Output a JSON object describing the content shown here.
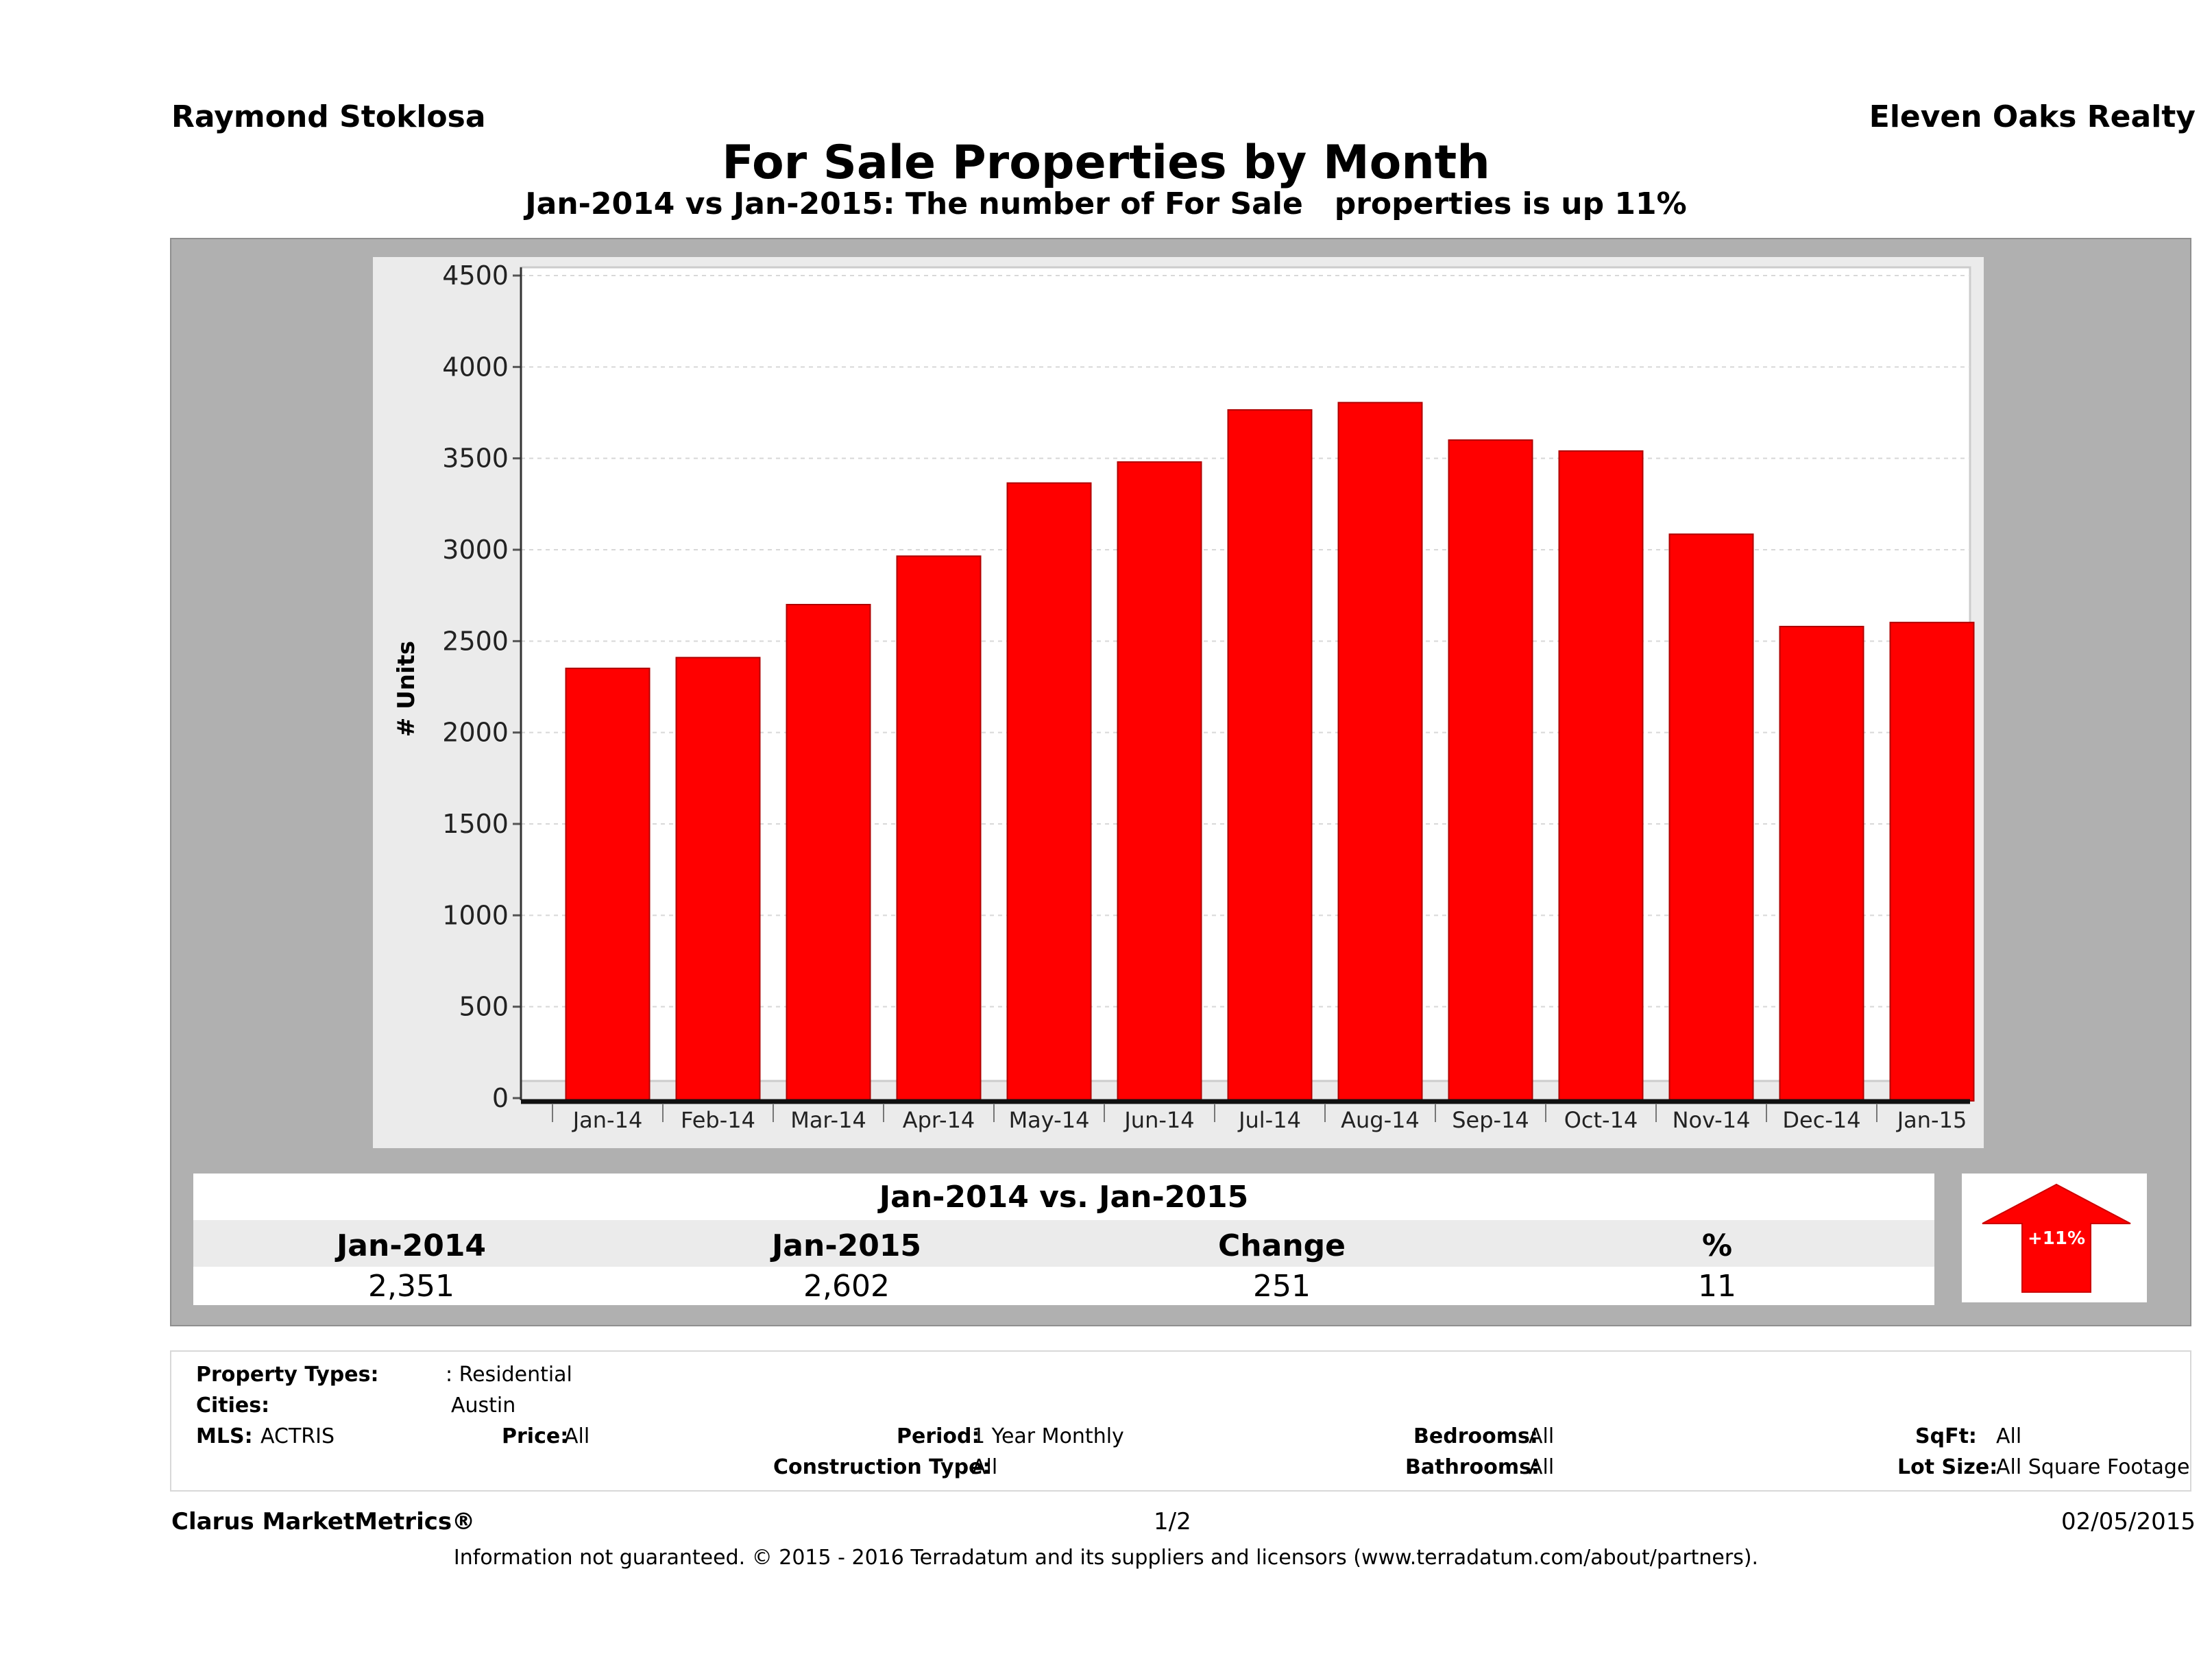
{
  "header": {
    "agent": "Raymond Stoklosa",
    "company": "Eleven Oaks Realty",
    "title": "For Sale Properties by Month",
    "subtitle": "Jan-2014 vs Jan-2015: The number of For Sale   properties is up 11%"
  },
  "chart_data": {
    "type": "bar",
    "categories": [
      "Jan-14",
      "Feb-14",
      "Mar-14",
      "Apr-14",
      "May-14",
      "Jun-14",
      "Jul-14",
      "Aug-14",
      "Sep-14",
      "Oct-14",
      "Nov-14",
      "Dec-14",
      "Jan-15"
    ],
    "values": [
      2351,
      2410,
      2700,
      2965,
      3365,
      3480,
      3765,
      3805,
      3600,
      3540,
      3085,
      2580,
      2602
    ],
    "ylabel": "# Units",
    "yticks": [
      "0",
      "500",
      "1000",
      "1500",
      "2000",
      "2500",
      "3000",
      "3500",
      "4000",
      "4500"
    ],
    "ylim": [
      0,
      4500
    ],
    "grid": true,
    "bar_color": "#ff0000"
  },
  "summary": {
    "title": "Jan-2014 vs. Jan-2015",
    "headers": [
      "Jan-2014",
      "Jan-2015",
      "Change",
      "%"
    ],
    "values": [
      "2,351",
      "2,602",
      "251",
      "11"
    ],
    "badge": "+11%",
    "badge_color": "#ff0000"
  },
  "filters": {
    "property_types_label": "Property Types:",
    "property_types_value": ": Residential",
    "cities_label": "Cities:",
    "cities_value": "Austin",
    "mls_label": "MLS:",
    "mls_value": "ACTRIS",
    "price_label": "Price:",
    "price_value": "All",
    "period_label": "Period:",
    "period_value": "1 Year Monthly",
    "bedrooms_label": "Bedrooms:",
    "bedrooms_value": "All",
    "sqft_label": "SqFt:",
    "sqft_value": "All",
    "construction_label": "Construction Type:",
    "construction_value": "All",
    "bathrooms_label": "Bathrooms:",
    "bathrooms_value": "All",
    "lot_label": "Lot Size:",
    "lot_value": "All Square Footage"
  },
  "footer": {
    "brand": "Clarus MarketMetrics®",
    "page": "1/2",
    "date": "02/05/2015",
    "disclaimer": "Information not guaranteed. © 2015 - 2016 Terradatum and its suppliers and licensors (www.terradatum.com/about/partners)."
  }
}
